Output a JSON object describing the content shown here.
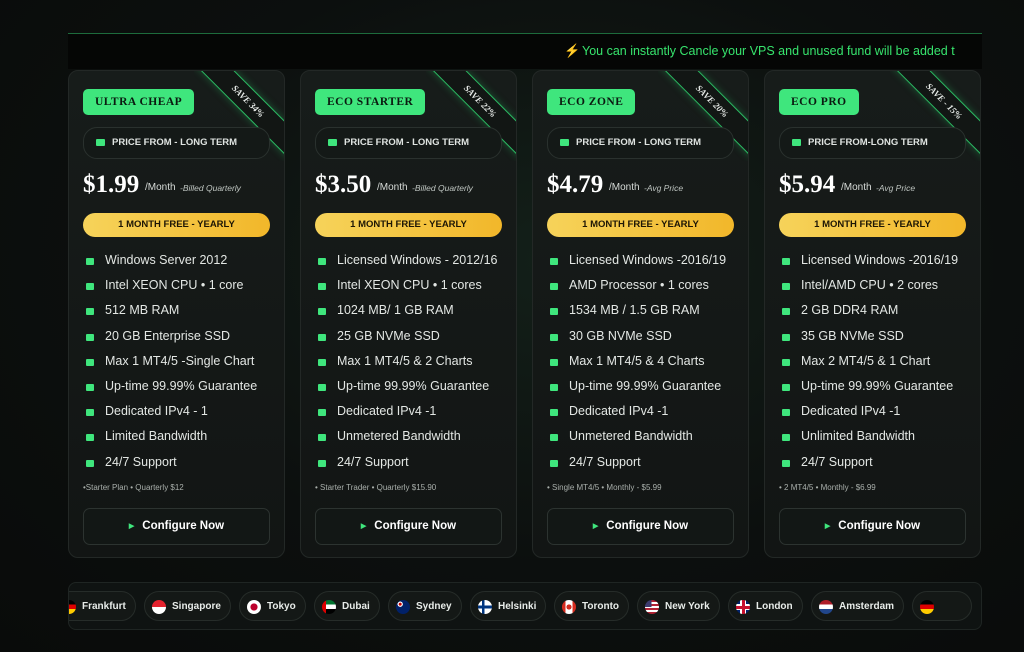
{
  "banner": {
    "message": "You can instantly Cancle your VPS and unused fund will be added t"
  },
  "plans": [
    {
      "badge": "ULTRA CHEAP",
      "save": "SAVE 34%",
      "price_label": "PRICE FROM - LONG TERM",
      "price": "$1.99",
      "period": "/Month",
      "note": "-Billed Quarterly",
      "promo": "1 MONTH FREE - YEARLY",
      "features": [
        "Windows Server 2012",
        "Intel XEON CPU • 1 core",
        "512 MB RAM",
        "20 GB Enterprise SSD",
        "Max 1 MT4/5 -Single Chart",
        "Up-time 99.99% Guarantee",
        "Dedicated IPv4 - 1",
        "Limited Bandwidth",
        "24/7 Support"
      ],
      "footnote": "•Starter Plan • Quarterly $12",
      "button": "Configure Now"
    },
    {
      "badge": "ECO STARTER",
      "save": "SAVE 22%",
      "price_label": "PRICE FROM - LONG TERM",
      "price": "$3.50",
      "period": "/Month",
      "note": "-Billed Quarterly",
      "promo": "1 MONTH FREE - YEARLY",
      "features": [
        "Licensed Windows - 2012/16",
        "Intel XEON CPU • 1 cores",
        "1024 MB/ 1 GB RAM",
        "25 GB NVMe SSD",
        "Max 1 MT4/5 & 2 Charts",
        "Up-time 99.99% Guarantee",
        "Dedicated IPv4 -1",
        "Unmetered Bandwidth",
        "24/7 Support"
      ],
      "footnote": "• Starter Trader • Quarterly $15.90",
      "button": "Configure Now"
    },
    {
      "badge": "ECO ZONE",
      "save": "SAVE 20%",
      "price_label": "PRICE FROM - LONG TERM",
      "price": "$4.79",
      "period": "/Month",
      "note": "-Avg Price",
      "promo": "1 MONTH FREE - YEARLY",
      "features": [
        "Licensed Windows -2016/19",
        "AMD Processor • 1 cores",
        "1534 MB / 1.5 GB RAM",
        "30 GB NVMe SSD",
        "Max 1 MT4/5 & 4 Charts",
        "Up-time 99.99% Guarantee",
        "Dedicated IPv4 -1",
        "Unmetered Bandwidth",
        "24/7 Support"
      ],
      "footnote": "• Single MT4/5 • Monthly - $5.99",
      "button": "Configure Now"
    },
    {
      "badge": "ECO PRO",
      "save": "SAVE - 15%",
      "price_label": "PRICE FROM-LONG TERM",
      "price": "$5.94",
      "period": "/Month",
      "note": "-Avg Price",
      "promo": "1 MONTH FREE - YEARLY",
      "features": [
        "Licensed Windows -2016/19",
        "Intel/AMD CPU • 2 cores",
        "2 GB DDR4 RAM",
        "35 GB NVMe SSD",
        "Max 2 MT4/5 & 1 Chart",
        "Up-time 99.99% Guarantee",
        "Dedicated IPv4 -1",
        "Unlimited Bandwidth",
        "24/7 Support"
      ],
      "footnote": "• 2 MT4/5 • Monthly - $6.99",
      "button": "Configure Now"
    }
  ],
  "locations": [
    "Frankfurt",
    "Singapore",
    "Tokyo",
    "Dubai",
    "Sydney",
    "Helsinki",
    "Toronto",
    "New York",
    "London",
    "Amsterdam"
  ]
}
